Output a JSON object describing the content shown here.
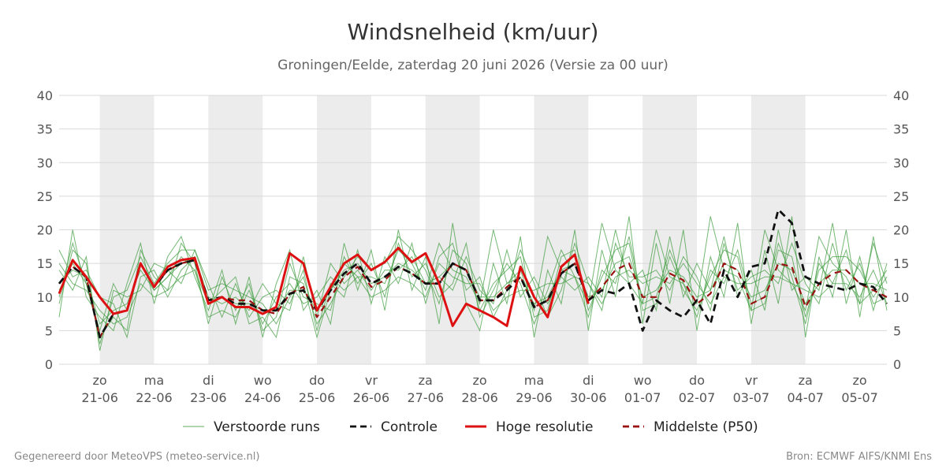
{
  "header": {
    "title": "Windsnelheid (km/uur)",
    "subtitle": "Groningen/Eelde, zaterdag 20 juni 2026 (Versie za 00 uur)"
  },
  "footer": {
    "left": "Gegenereerd door MeteoVPS (meteo-service.nl)",
    "right": "Bron: ECMWF AIFS/KNMI Ens"
  },
  "chart_data": {
    "type": "line",
    "title": "Windsnelheid (km/uur)",
    "subtitle": "Groningen/Eelde, zaterdag 20 juni 2026 (Versie za 00 uur)",
    "ylim": [
      0,
      40
    ],
    "yticks": [
      0,
      5,
      10,
      15,
      20,
      25,
      30,
      35,
      40
    ],
    "xlim": [
      -0.75,
      14.5
    ],
    "grid": true,
    "legend_position": "bottom",
    "x_ticks": [
      {
        "day": "zo",
        "date": "21-06"
      },
      {
        "day": "ma",
        "date": "22-06"
      },
      {
        "day": "di",
        "date": "23-06"
      },
      {
        "day": "wo",
        "date": "24-06"
      },
      {
        "day": "do",
        "date": "25-06"
      },
      {
        "day": "vr",
        "date": "26-06"
      },
      {
        "day": "za",
        "date": "27-06"
      },
      {
        "day": "zo",
        "date": "28-06"
      },
      {
        "day": "ma",
        "date": "29-06"
      },
      {
        "day": "di",
        "date": "30-06"
      },
      {
        "day": "wo",
        "date": "01-07"
      },
      {
        "day": "do",
        "date": "02-07"
      },
      {
        "day": "vr",
        "date": "03-07"
      },
      {
        "day": "za",
        "date": "04-07"
      },
      {
        "day": "zo",
        "date": "05-07"
      }
    ],
    "shaded_days": [
      [
        0,
        1
      ],
      [
        2,
        3
      ],
      [
        4,
        5
      ],
      [
        6,
        7
      ],
      [
        8,
        9
      ],
      [
        10,
        11
      ],
      [
        12,
        13
      ]
    ],
    "legend": [
      {
        "label": "Verstoorde runs",
        "color": "#3a9a3a",
        "style": "thin"
      },
      {
        "label": "Controle",
        "color": "#111111",
        "style": "dashed"
      },
      {
        "label": "Hoge resolutie",
        "color": "#dd1111",
        "style": "solid"
      },
      {
        "label": "Middelste (P50)",
        "color": "#991111",
        "style": "dashed"
      }
    ],
    "series": [
      {
        "name": "Hoge resolutie",
        "color": "#dd1111",
        "points": [
          [
            -0.75,
            10.5
          ],
          [
            -0.5,
            15.5
          ],
          [
            -0.25,
            13
          ],
          [
            0,
            10
          ],
          [
            0.25,
            7.5
          ],
          [
            0.5,
            8
          ],
          [
            0.75,
            15
          ],
          [
            1,
            11.5
          ],
          [
            1.25,
            14.5
          ],
          [
            1.5,
            15.5
          ],
          [
            1.75,
            15.8
          ],
          [
            2,
            9
          ],
          [
            2.25,
            10
          ],
          [
            2.5,
            8.5
          ],
          [
            2.75,
            8.5
          ],
          [
            3,
            7.5
          ],
          [
            3.25,
            8.5
          ],
          [
            3.5,
            16.5
          ],
          [
            3.75,
            15
          ],
          [
            4,
            8
          ],
          [
            4.25,
            11.5
          ],
          [
            4.5,
            15
          ],
          [
            4.75,
            16.3
          ],
          [
            5,
            14
          ],
          [
            5.25,
            15.2
          ],
          [
            5.5,
            17.3
          ],
          [
            5.75,
            15.2
          ],
          [
            6,
            16.5
          ],
          [
            6.25,
            12
          ],
          [
            6.5,
            5.7
          ],
          [
            6.75,
            9
          ],
          [
            7,
            8
          ],
          [
            7.25,
            7
          ],
          [
            7.5,
            5.7
          ],
          [
            7.75,
            14.5
          ],
          [
            8,
            10
          ],
          [
            8.25,
            7
          ],
          [
            8.5,
            14.5
          ],
          [
            8.75,
            16.3
          ],
          [
            9,
            9
          ]
        ]
      },
      {
        "name": "Controle",
        "color": "#111111",
        "points": [
          [
            -0.75,
            12
          ],
          [
            -0.5,
            14.5
          ],
          [
            -0.25,
            13
          ],
          [
            0,
            4
          ],
          [
            0.25,
            7.5
          ],
          [
            0.5,
            8
          ],
          [
            0.75,
            15
          ],
          [
            1,
            11.5
          ],
          [
            1.25,
            14
          ],
          [
            1.5,
            15
          ],
          [
            1.75,
            15.5
          ],
          [
            2,
            9.5
          ],
          [
            2.25,
            10
          ],
          [
            2.5,
            9
          ],
          [
            2.75,
            9
          ],
          [
            3,
            8
          ],
          [
            3.25,
            8
          ],
          [
            3.5,
            10.5
          ],
          [
            3.75,
            11
          ],
          [
            4,
            8
          ],
          [
            4.25,
            11
          ],
          [
            4.5,
            13.5
          ],
          [
            4.75,
            15
          ],
          [
            5,
            12
          ],
          [
            5.25,
            13
          ],
          [
            5.5,
            14.5
          ],
          [
            5.75,
            13.5
          ],
          [
            6,
            12
          ],
          [
            6.25,
            12
          ],
          [
            6.5,
            15
          ],
          [
            6.75,
            14
          ],
          [
            7,
            9.5
          ],
          [
            7.25,
            9.5
          ],
          [
            7.5,
            11
          ],
          [
            7.75,
            13
          ],
          [
            8,
            8.5
          ],
          [
            8.25,
            9.5
          ],
          [
            8.5,
            13.5
          ],
          [
            8.75,
            15
          ],
          [
            9,
            9.5
          ],
          [
            9.25,
            11
          ],
          [
            9.5,
            10.5
          ],
          [
            9.75,
            12
          ],
          [
            10,
            5
          ],
          [
            10.25,
            9.5
          ],
          [
            10.5,
            8
          ],
          [
            10.75,
            7
          ],
          [
            11,
            9.5
          ],
          [
            11.25,
            6
          ],
          [
            11.5,
            14
          ],
          [
            11.75,
            10
          ],
          [
            12,
            14.5
          ],
          [
            12.25,
            15
          ],
          [
            12.5,
            23
          ],
          [
            12.75,
            21
          ],
          [
            13,
            13
          ],
          [
            13.25,
            12
          ],
          [
            13.5,
            11.5
          ],
          [
            13.75,
            11
          ],
          [
            14,
            12
          ],
          [
            14.25,
            11.5
          ],
          [
            14.5,
            9
          ]
        ]
      },
      {
        "name": "Middelste (P50)",
        "color": "#991111",
        "points": [
          [
            -0.75,
            12
          ],
          [
            -0.5,
            14.5
          ],
          [
            -0.25,
            13
          ],
          [
            0,
            4
          ],
          [
            0.25,
            7.5
          ],
          [
            0.5,
            8
          ],
          [
            0.75,
            15
          ],
          [
            1,
            11.5
          ],
          [
            1.25,
            14
          ],
          [
            1.5,
            15
          ],
          [
            1.75,
            15.5
          ],
          [
            2,
            9.5
          ],
          [
            2.25,
            10
          ],
          [
            2.5,
            9.5
          ],
          [
            2.75,
            9.5
          ],
          [
            3,
            8
          ],
          [
            3.25,
            7.5
          ],
          [
            3.5,
            10.5
          ],
          [
            3.75,
            11.5
          ],
          [
            4,
            7
          ],
          [
            4.25,
            10
          ],
          [
            4.5,
            13
          ],
          [
            4.75,
            14.5
          ],
          [
            5,
            11.5
          ],
          [
            5.25,
            12.5
          ],
          [
            5.5,
            14.5
          ],
          [
            5.75,
            13.5
          ],
          [
            6,
            12
          ],
          [
            6.25,
            12
          ],
          [
            6.5,
            15
          ],
          [
            6.75,
            14
          ],
          [
            7,
            9.5
          ],
          [
            7.25,
            9.5
          ],
          [
            7.5,
            11.5
          ],
          [
            7.75,
            13
          ],
          [
            8,
            8.5
          ],
          [
            8.25,
            9.5
          ],
          [
            8.5,
            13.5
          ],
          [
            8.75,
            15
          ],
          [
            9,
            9.5
          ],
          [
            9.25,
            11.5
          ],
          [
            9.5,
            14
          ],
          [
            9.75,
            15
          ],
          [
            10,
            10
          ],
          [
            10.25,
            10
          ],
          [
            10.5,
            13.5
          ],
          [
            10.75,
            12.5
          ],
          [
            11,
            9
          ],
          [
            11.25,
            10.5
          ],
          [
            11.5,
            15
          ],
          [
            11.75,
            14
          ],
          [
            12,
            9
          ],
          [
            12.25,
            10
          ],
          [
            12.5,
            15
          ],
          [
            12.75,
            14.5
          ],
          [
            13,
            8.5
          ],
          [
            13.25,
            12
          ],
          [
            13.5,
            13.5
          ],
          [
            13.75,
            14
          ],
          [
            14,
            12
          ],
          [
            14.25,
            11
          ],
          [
            14.5,
            10
          ]
        ]
      }
    ],
    "ensemble": {
      "name": "Verstoorde runs",
      "color": "#3a9a3a",
      "x_start": -0.75,
      "x_step": 0.25,
      "runs": [
        [
          12,
          14,
          13,
          6,
          8,
          9,
          14,
          11,
          13,
          15,
          16,
          9,
          10,
          9,
          9,
          8,
          8,
          11,
          11,
          8,
          11,
          14,
          15,
          12,
          13,
          15,
          14,
          12,
          13,
          15,
          14,
          10,
          10,
          12,
          13,
          9,
          10,
          14,
          15,
          10,
          11,
          15,
          16,
          10,
          11,
          14,
          13,
          10,
          11,
          15,
          14,
          10,
          11,
          15,
          14,
          9,
          12,
          14,
          14,
          12,
          12,
          11
        ],
        [
          9,
          17,
          15,
          3,
          10,
          11,
          16,
          12,
          15,
          17,
          17,
          11,
          12,
          11,
          10,
          9,
          6,
          10,
          13,
          6,
          9,
          13,
          16,
          14,
          15,
          19,
          17,
          14,
          9,
          17,
          15,
          8,
          12,
          14,
          16,
          7,
          8,
          16,
          17,
          8,
          13,
          17,
          18,
          8,
          9,
          16,
          11,
          8,
          13,
          17,
          16,
          8,
          9,
          17,
          16,
          7,
          14,
          16,
          16,
          14,
          10,
          13
        ],
        [
          15,
          12,
          11,
          8,
          6,
          7,
          12,
          10,
          11,
          13,
          14,
          7,
          8,
          7,
          11,
          6,
          10,
          12,
          9,
          10,
          13,
          11,
          13,
          10,
          11,
          13,
          12,
          10,
          15,
          13,
          12,
          12,
          8,
          10,
          11,
          11,
          12,
          12,
          13,
          12,
          9,
          13,
          14,
          12,
          13,
          12,
          15,
          12,
          9,
          13,
          12,
          12,
          13,
          13,
          12,
          11,
          10,
          12,
          12,
          10,
          14,
          9
        ],
        [
          10,
          18,
          12,
          4,
          7,
          5,
          17,
          13,
          11,
          18,
          15,
          6,
          13,
          8,
          12,
          5,
          7,
          15,
          10,
          9,
          8,
          16,
          12,
          15,
          10,
          18,
          13,
          15,
          10,
          12,
          18,
          7,
          11,
          15,
          12,
          6,
          11,
          17,
          13,
          7,
          14,
          12,
          19,
          9,
          10,
          17,
          12,
          7,
          14,
          12,
          17,
          9,
          10,
          18,
          13,
          6,
          15,
          12,
          17,
          9,
          11,
          14
        ],
        [
          14,
          11,
          16,
          2,
          11,
          10,
          11,
          15,
          14,
          12,
          17,
          12,
          7,
          12,
          7,
          10,
          11,
          9,
          14,
          5,
          12,
          10,
          17,
          9,
          16,
          12,
          18,
          9,
          16,
          18,
          11,
          13,
          7,
          11,
          17,
          12,
          7,
          11,
          18,
          12,
          8,
          18,
          13,
          13,
          14,
          11,
          16,
          13,
          8,
          18,
          11,
          13,
          14,
          12,
          18,
          12,
          9,
          18,
          11,
          15,
          9,
          10
        ],
        [
          7,
          20,
          10,
          7,
          5,
          12,
          18,
          9,
          16,
          19,
          13,
          8,
          14,
          6,
          13,
          4,
          12,
          17,
          8,
          11,
          6,
          18,
          11,
          17,
          8,
          20,
          11,
          16,
          6,
          21,
          9,
          5,
          15,
          9,
          19,
          4,
          14,
          9,
          20,
          5,
          17,
          10,
          22,
          6,
          18,
          9,
          20,
          5,
          16,
          10,
          21,
          6,
          17,
          9,
          22,
          4,
          16,
          10,
          20,
          7,
          19,
          8
        ],
        [
          17,
          13,
          14,
          10,
          9,
          4,
          13,
          14,
          10,
          14,
          16,
          10,
          9,
          10,
          8,
          12,
          9,
          8,
          16,
          7,
          15,
          12,
          14,
          11,
          14,
          14,
          16,
          12,
          13,
          11,
          16,
          11,
          9,
          17,
          10,
          13,
          9,
          13,
          11,
          13,
          10,
          20,
          12,
          14,
          8,
          19,
          10,
          15,
          11,
          19,
          10,
          14,
          8,
          20,
          11,
          13,
          11,
          21,
          9,
          16,
          8,
          15
        ],
        [
          11,
          15,
          12,
          5,
          12,
          8,
          15,
          11,
          13,
          16,
          14,
          9,
          11,
          13,
          6,
          7,
          4,
          13,
          12,
          4,
          11,
          15,
          13,
          13,
          12,
          17,
          15,
          11,
          18,
          14,
          13,
          9,
          20,
          12,
          14,
          8,
          19,
          14,
          13,
          9,
          21,
          14,
          12,
          9,
          20,
          13,
          12,
          9,
          22,
          14,
          13,
          8,
          20,
          14,
          12,
          8,
          19,
          15,
          13,
          9,
          18,
          12
        ]
      ]
    }
  }
}
